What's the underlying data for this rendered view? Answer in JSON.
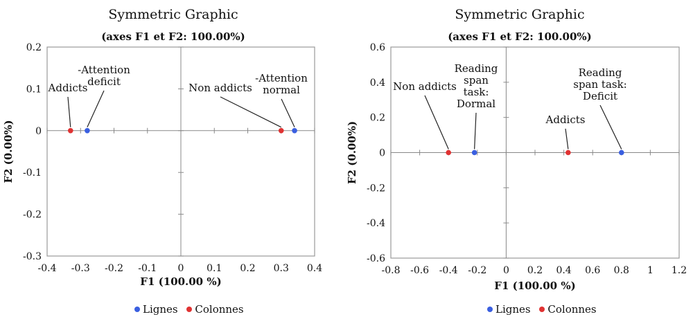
{
  "colors": {
    "lignes": "#3a5fe0",
    "colonnes": "#e03232",
    "axis": "#888888",
    "frame": "#999999",
    "leader": "#222222"
  },
  "chart_data": [
    {
      "type": "scatter",
      "title": "Symmetric Graphic",
      "subtitle": "(axes F1 et F2: 100.00%)",
      "xlabel": "F1 (100.00 %)",
      "ylabel": "F2 (0.00%)",
      "xlim": [
        -0.4,
        0.4
      ],
      "ylim": [
        -0.3,
        0.2
      ],
      "xticks": [
        "-0.4",
        "-0.3",
        "-0.2",
        "-0.1",
        "0",
        "0.1",
        "0.2",
        "0.3",
        "0.4"
      ],
      "xtick_values": [
        -0.4,
        -0.3,
        -0.2,
        -0.1,
        0,
        0.1,
        0.2,
        0.3,
        0.4
      ],
      "yticks": [
        "0.2",
        "0.1",
        "0",
        "-0.1",
        "-0.2",
        "-0.3"
      ],
      "ytick_values": [
        0.2,
        0.1,
        0,
        -0.1,
        -0.2,
        -0.3
      ],
      "grid": false,
      "legend": [
        "Lignes",
        "Colonnes"
      ],
      "legend_position": "bottom",
      "series": [
        {
          "name": "Lignes",
          "color_key": "lignes",
          "points": [
            {
              "x": -0.28,
              "y": 0,
              "label": [
                "-Attention",
                "deficit"
              ]
            },
            {
              "x": 0.34,
              "y": 0,
              "label": [
                "-Attention",
                "normal"
              ]
            }
          ]
        },
        {
          "name": "Colonnes",
          "color_key": "colonnes",
          "points": [
            {
              "x": -0.33,
              "y": 0,
              "label": [
                "Addicts"
              ]
            },
            {
              "x": 0.3,
              "y": 0,
              "label": [
                "Non addicts"
              ]
            }
          ]
        }
      ]
    },
    {
      "type": "scatter",
      "title": "Symmetric Graphic",
      "subtitle": "(axes F1 et F2: 100.00%)",
      "xlabel": "F1 (100.00 %)",
      "ylabel": "F2 (0.00%)",
      "xlim": [
        -0.8,
        1.2
      ],
      "ylim": [
        -0.6,
        0.6
      ],
      "xticks": [
        "-0.8",
        "-0.6",
        "-0.4",
        "-0.2",
        "0",
        "0.2",
        "0.4",
        "0.6",
        "0.8",
        "1",
        "1.2"
      ],
      "xtick_values": [
        -0.8,
        -0.6,
        -0.4,
        -0.2,
        0,
        0.2,
        0.4,
        0.6,
        0.8,
        1,
        1.2
      ],
      "yticks": [
        "0.6",
        "0.4",
        "0.2",
        "0",
        "-0.2",
        "-0.4",
        "-0.6"
      ],
      "ytick_values": [
        0.6,
        0.4,
        0.2,
        0,
        -0.2,
        -0.4,
        -0.6
      ],
      "grid": false,
      "legend": [
        "Lignes",
        "Colonnes"
      ],
      "legend_position": "bottom",
      "series": [
        {
          "name": "Lignes",
          "color_key": "lignes",
          "points": [
            {
              "x": -0.22,
              "y": 0,
              "label": [
                "Reading",
                "span",
                "task:",
                "Dormal"
              ]
            },
            {
              "x": 0.8,
              "y": 0,
              "label": [
                "Reading",
                "span task:",
                "Deficit"
              ]
            }
          ]
        },
        {
          "name": "Colonnes",
          "color_key": "colonnes",
          "points": [
            {
              "x": -0.4,
              "y": 0,
              "label": [
                "Non addicts"
              ]
            },
            {
              "x": 0.43,
              "y": 0,
              "label": [
                "Addicts"
              ]
            }
          ]
        }
      ]
    }
  ]
}
